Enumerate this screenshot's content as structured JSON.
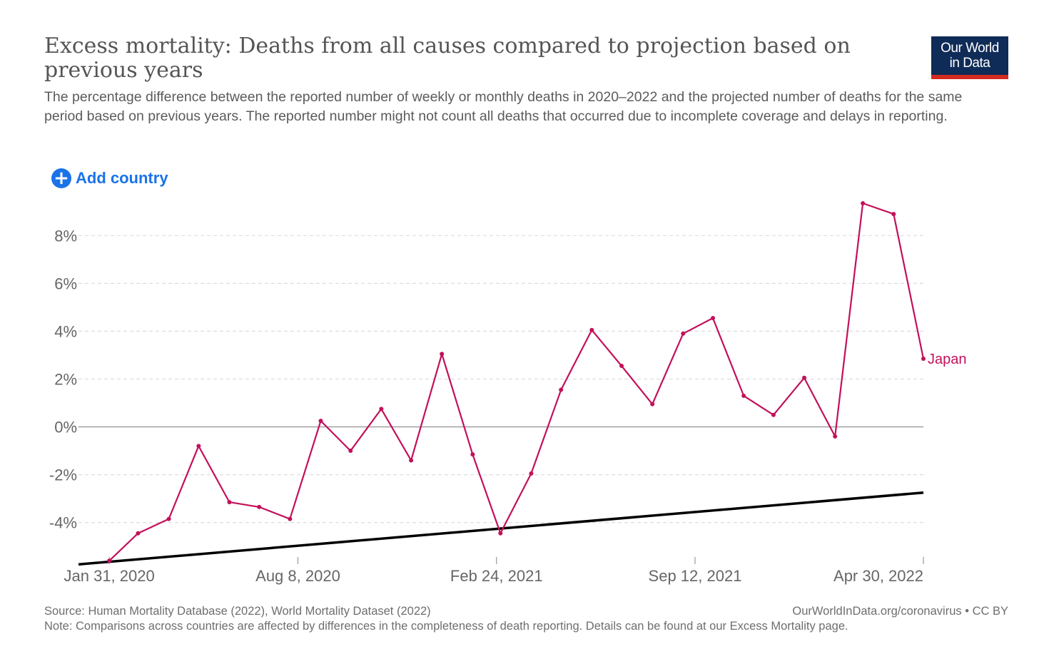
{
  "header": {
    "title": "Excess mortality: Deaths from all causes compared to projection based on previous years",
    "subtitle": "The percentage difference between the reported number of weekly or monthly deaths in 2020–2022 and the projected number of deaths for the same period based on previous years. The reported number might not count all deaths that occurred due to incomplete coverage and delays in reporting.",
    "logo_line1": "Our World",
    "logo_line2": "in Data"
  },
  "controls": {
    "add_country_label": "Add country",
    "add_icon": "plus-circle-icon"
  },
  "footer": {
    "source": "Source: Human Mortality Database (2022), World Mortality Dataset (2022)",
    "link": "OurWorldInData.org/coronavirus • CC BY",
    "note": "Note: Comparisons across countries are affected by differences in the completeness of death reporting. Details can be found at our Excess Mortality page."
  },
  "colors": {
    "series": "#c3105a",
    "trend": "#000000",
    "grid": "#dddddd",
    "zero_line": "#a0a0a0",
    "axis_text": "#666666",
    "accent": "#1a73e8",
    "logo_bg": "#0f2b57",
    "logo_stripe": "#d42b21"
  },
  "chart_data": {
    "type": "line",
    "title": "Excess mortality: Deaths from all causes compared to projection based on previous years",
    "xlabel": "",
    "ylabel": "",
    "ylim": [
      -5.8,
      9.5
    ],
    "yticks": [
      -4,
      -2,
      0,
      2,
      4,
      6,
      8
    ],
    "ytick_labels": [
      "-4%",
      "-2%",
      "0%",
      "2%",
      "4%",
      "6%",
      "8%"
    ],
    "xlim": [
      "2019-12-31",
      "2022-04-30"
    ],
    "xticks": [
      "2020-01-31",
      "2020-08-08",
      "2021-02-24",
      "2021-09-12",
      "2022-04-30"
    ],
    "xtick_labels": [
      "Jan 31, 2020",
      "Aug 8, 2020",
      "Feb 24, 2021",
      "Sep 12, 2021",
      "Apr 30, 2022"
    ],
    "grid": true,
    "legend": "inline label at line end",
    "series": [
      {
        "name": "Japan",
        "x": [
          "2020-01-31",
          "2020-02-29",
          "2020-03-31",
          "2020-04-30",
          "2020-05-31",
          "2020-06-30",
          "2020-07-31",
          "2020-08-31",
          "2020-09-30",
          "2020-10-31",
          "2020-11-30",
          "2020-12-31",
          "2021-01-31",
          "2021-02-28",
          "2021-03-31",
          "2021-04-30",
          "2021-05-31",
          "2021-06-30",
          "2021-07-31",
          "2021-08-31",
          "2021-09-30",
          "2021-10-31",
          "2021-11-30",
          "2021-12-31",
          "2022-01-31",
          "2022-02-28",
          "2022-03-31",
          "2022-04-30"
        ],
        "y": [
          -5.6,
          -4.45,
          -3.85,
          -0.8,
          -3.15,
          -3.35,
          -3.85,
          0.25,
          -1.0,
          0.75,
          -1.4,
          3.05,
          -1.15,
          -4.45,
          -1.95,
          1.55,
          4.05,
          2.55,
          0.95,
          3.9,
          4.55,
          1.3,
          0.5,
          2.05,
          -0.4,
          9.35,
          8.9,
          2.85
        ]
      }
    ],
    "trendline": {
      "x": [
        "2019-12-31",
        "2022-04-30"
      ],
      "y": [
        -5.75,
        -2.75
      ]
    }
  }
}
